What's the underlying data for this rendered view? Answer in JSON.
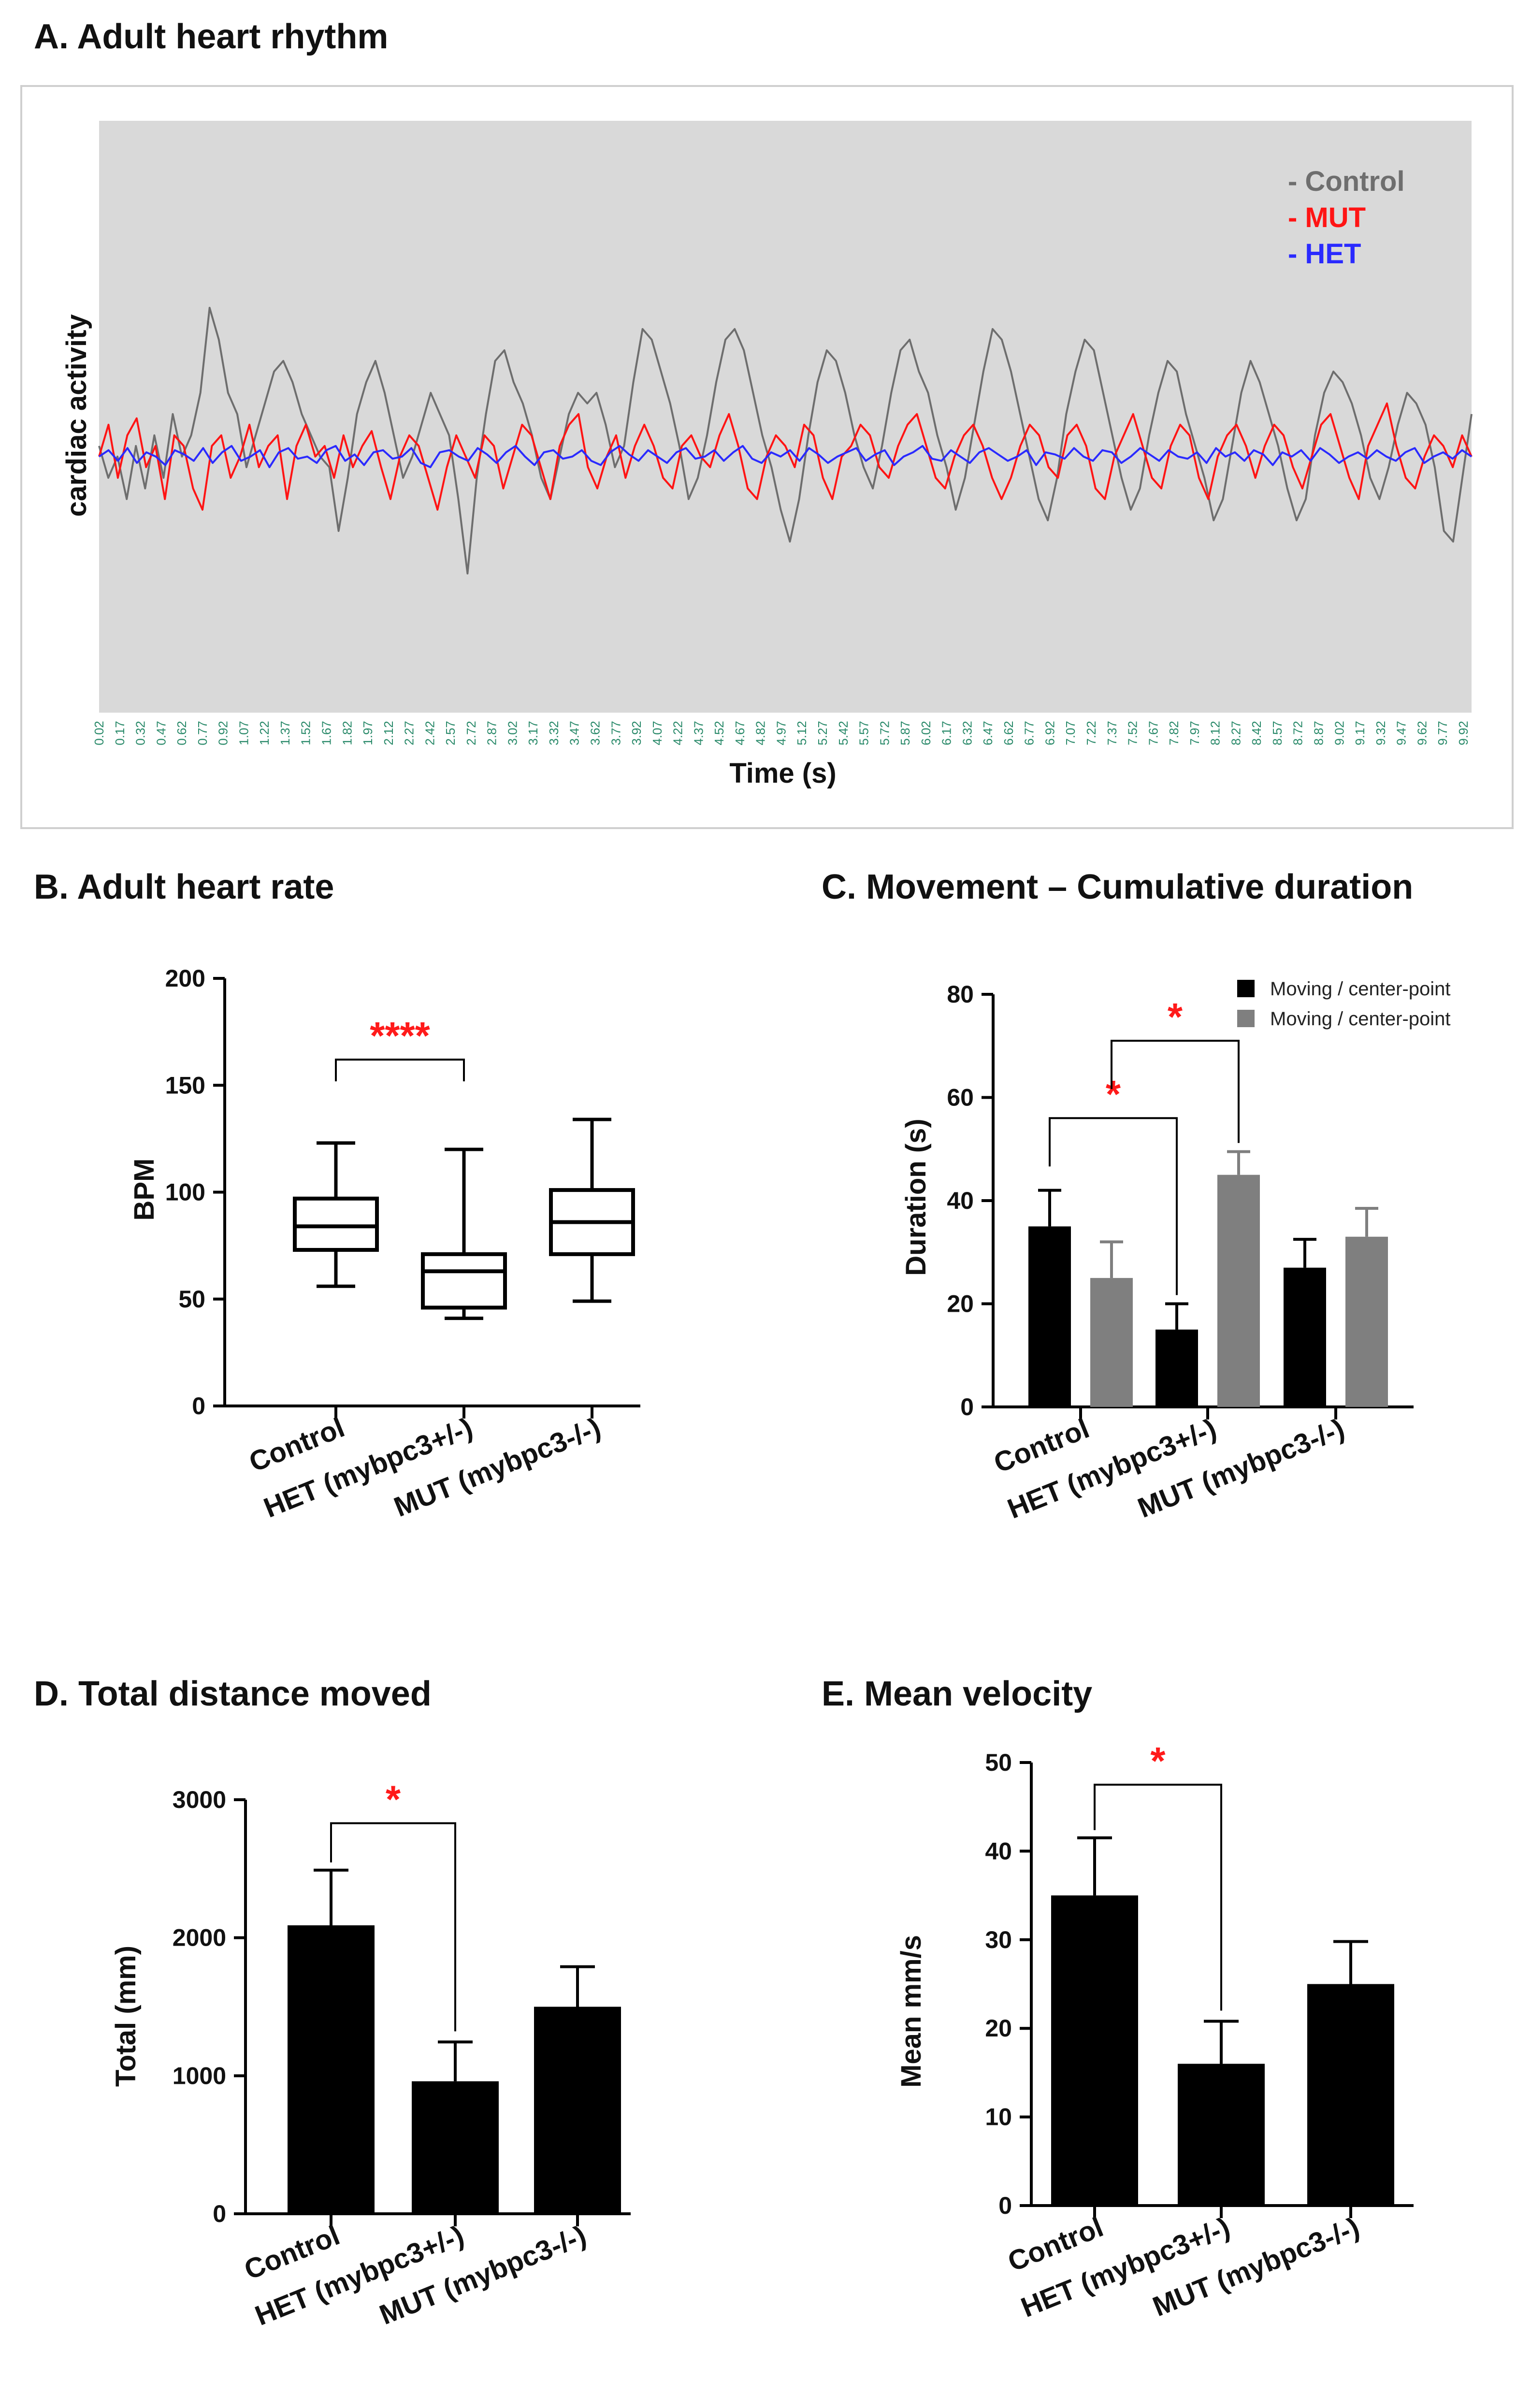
{
  "colors": {
    "control": "#6e6e6e",
    "mut": "#ff1414",
    "het": "#2a2aff",
    "bar_black": "#000000",
    "bar_gray": "#7f7f7f",
    "plot_bg": "#d9d9d9",
    "significance": "#ff1a1a",
    "time_tick": "#2a8a6a"
  },
  "chart_data": [
    {
      "id": "A",
      "type": "line",
      "title": "A. Adult heart rhythm",
      "xlabel": "Time (s)",
      "ylabel": "cardiac activity",
      "xlim": [
        0.02,
        9.98
      ],
      "ylim": [
        -1,
        1
      ],
      "x_tick_step": 0.15,
      "x_tick_start": 0.02,
      "legend": [
        "- Control",
        "- MUT",
        "- HET"
      ],
      "legend_position": "top-right",
      "series": [
        {
          "name": "Control",
          "key": "control",
          "y": [
            0.05,
            -0.1,
            0.0,
            -0.2,
            0.05,
            -0.15,
            0.1,
            -0.1,
            0.2,
            0.0,
            0.1,
            0.3,
            0.7,
            0.55,
            0.3,
            0.2,
            -0.05,
            0.1,
            0.25,
            0.4,
            0.45,
            0.35,
            0.2,
            0.1,
            0.0,
            -0.05,
            -0.35,
            -0.1,
            0.2,
            0.35,
            0.45,
            0.3,
            0.1,
            -0.1,
            0.0,
            0.15,
            0.3,
            0.2,
            0.1,
            -0.2,
            -0.55,
            -0.1,
            0.2,
            0.45,
            0.5,
            0.35,
            0.25,
            0.1,
            -0.1,
            -0.2,
            0.0,
            0.2,
            0.3,
            0.25,
            0.3,
            0.15,
            -0.05,
            0.05,
            0.35,
            0.6,
            0.55,
            0.4,
            0.25,
            0.05,
            -0.2,
            -0.1,
            0.1,
            0.35,
            0.55,
            0.6,
            0.5,
            0.3,
            0.1,
            -0.05,
            -0.25,
            -0.4,
            -0.2,
            0.1,
            0.35,
            0.5,
            0.45,
            0.3,
            0.1,
            -0.05,
            -0.15,
            0.05,
            0.3,
            0.5,
            0.55,
            0.4,
            0.3,
            0.1,
            -0.05,
            -0.25,
            -0.1,
            0.15,
            0.4,
            0.6,
            0.55,
            0.4,
            0.2,
            0.0,
            -0.2,
            -0.3,
            -0.1,
            0.2,
            0.4,
            0.55,
            0.5,
            0.3,
            0.1,
            -0.1,
            -0.25,
            -0.15,
            0.1,
            0.3,
            0.45,
            0.4,
            0.2,
            0.05,
            -0.1,
            -0.3,
            -0.2,
            0.05,
            0.3,
            0.45,
            0.35,
            0.2,
            0.05,
            -0.15,
            -0.3,
            -0.2,
            0.1,
            0.3,
            0.4,
            0.35,
            0.25,
            0.1,
            -0.1,
            -0.2,
            -0.05,
            0.15,
            0.3,
            0.25,
            0.15,
            -0.05,
            -0.35,
            -0.4,
            -0.1,
            0.2
          ]
        },
        {
          "name": "MUT",
          "key": "mut",
          "y": [
            0.0,
            0.15,
            -0.1,
            0.1,
            0.18,
            -0.05,
            0.05,
            -0.2,
            0.1,
            0.05,
            -0.15,
            -0.25,
            0.05,
            0.1,
            -0.1,
            0.0,
            0.15,
            -0.05,
            0.05,
            0.1,
            -0.2,
            0.05,
            0.15,
            0.0,
            0.05,
            -0.1,
            0.1,
            -0.05,
            0.05,
            0.12,
            -0.05,
            -0.2,
            0.0,
            0.1,
            0.05,
            -0.1,
            -0.25,
            -0.05,
            0.1,
            0.0,
            -0.1,
            0.1,
            0.05,
            -0.15,
            0.0,
            0.15,
            0.1,
            -0.05,
            -0.2,
            0.05,
            0.15,
            0.2,
            -0.05,
            -0.15,
            0.0,
            0.1,
            -0.1,
            0.05,
            0.15,
            0.05,
            -0.1,
            -0.15,
            0.05,
            0.1,
            0.0,
            -0.05,
            0.1,
            0.2,
            0.05,
            -0.15,
            -0.2,
            0.0,
            0.1,
            0.05,
            -0.05,
            0.15,
            0.1,
            -0.1,
            -0.2,
            0.0,
            0.05,
            0.15,
            0.1,
            -0.05,
            -0.1,
            0.05,
            0.15,
            0.2,
            0.05,
            -0.1,
            -0.15,
            0.0,
            0.1,
            0.15,
            0.05,
            -0.1,
            -0.2,
            -0.1,
            0.05,
            0.15,
            0.1,
            -0.05,
            -0.1,
            0.1,
            0.15,
            0.05,
            -0.15,
            -0.2,
            0.0,
            0.1,
            0.2,
            0.05,
            -0.1,
            -0.15,
            0.05,
            0.15,
            0.1,
            -0.1,
            -0.2,
            0.0,
            0.1,
            0.15,
            0.05,
            -0.1,
            0.05,
            0.15,
            0.1,
            -0.05,
            -0.15,
            0.0,
            0.15,
            0.2,
            0.05,
            -0.1,
            -0.2,
            0.05,
            0.15,
            0.25,
            0.05,
            -0.1,
            -0.15,
            0.0,
            0.1,
            0.05,
            -0.05,
            0.1,
            0.0
          ]
        },
        {
          "name": "HET",
          "key": "het",
          "y": [
            0.0,
            0.03,
            -0.02,
            0.04,
            -0.03,
            0.02,
            0.0,
            -0.04,
            0.03,
            0.01,
            -0.02,
            0.04,
            -0.03,
            0.02,
            0.05,
            -0.02,
            0.0,
            0.03,
            -0.05,
            0.02,
            0.04,
            -0.01,
            0.0,
            -0.03,
            0.03,
            0.05,
            -0.02,
            0.01,
            -0.04,
            0.02,
            0.03,
            -0.01,
            0.0,
            0.04,
            -0.03,
            -0.05,
            0.02,
            0.03,
            0.0,
            -0.02,
            0.04,
            0.01,
            -0.03,
            0.02,
            0.05,
            0.0,
            -0.04,
            0.02,
            0.03,
            -0.01,
            0.0,
            0.03,
            -0.02,
            -0.04,
            0.02,
            0.05,
            0.01,
            -0.02,
            0.03,
            0.0,
            -0.03,
            0.02,
            0.04,
            -0.01,
            0.0,
            0.03,
            -0.02,
            0.02,
            0.05,
            -0.01,
            -0.03,
            0.02,
            0.0,
            0.03,
            -0.02,
            0.04,
            0.01,
            -0.03,
            0.0,
            0.02,
            0.04,
            -0.02,
            0.01,
            0.03,
            -0.04,
            0.0,
            0.02,
            0.05,
            -0.01,
            -0.02,
            0.03,
            0.0,
            -0.03,
            0.02,
            0.04,
            0.01,
            -0.02,
            0.0,
            0.03,
            -0.04,
            0.02,
            0.01,
            -0.01,
            0.04,
            0.0,
            -0.02,
            0.03,
            0.02,
            -0.03,
            0.0,
            0.04,
            0.01,
            -0.02,
            0.03,
            0.0,
            -0.01,
            0.02,
            -0.03,
            0.04,
            0.0,
            0.02,
            -0.02,
            0.03,
            0.01,
            -0.04,
            0.02,
            0.0,
            0.03,
            -0.02,
            0.04,
            0.01,
            -0.03,
            0.0,
            0.02,
            -0.01,
            0.03,
            0.0,
            -0.02,
            0.02,
            0.04,
            -0.03,
            0.0,
            0.02,
            -0.01,
            0.03,
            0.0
          ]
        }
      ]
    },
    {
      "id": "B",
      "type": "boxplot",
      "title": "B. Adult heart rate",
      "ylabel": "BPM",
      "ylim": [
        0,
        200
      ],
      "yticks": [
        0,
        50,
        100,
        150,
        200
      ],
      "categories": [
        "Control",
        "HET (mybpc3+/-)",
        "MUT (mybpc3-/-)"
      ],
      "boxes": [
        {
          "min": 56,
          "q1": 73,
          "median": 84,
          "q3": 97,
          "max": 123
        },
        {
          "min": 41,
          "q1": 46,
          "median": 63,
          "q3": 71,
          "max": 120
        },
        {
          "min": 49,
          "q1": 71,
          "median": 86,
          "q3": 101,
          "max": 134
        }
      ],
      "significance": [
        {
          "from": 0,
          "to": 1,
          "label": "****",
          "y": 162
        }
      ]
    },
    {
      "id": "C",
      "type": "bar",
      "title": "C. Movement – Cumulative duration",
      "ylabel": "Duration (s)",
      "ylim": [
        0,
        80
      ],
      "yticks": [
        0,
        20,
        40,
        60,
        80
      ],
      "categories": [
        "Control",
        "HET (mybpc3+/-)",
        "MUT (mybpc3-/-)"
      ],
      "legend_position": "top-right",
      "series": [
        {
          "name": "Moving / center-point",
          "color_key": "bar_black",
          "values": [
            35,
            15,
            27
          ],
          "errors": [
            7,
            5,
            5.5
          ]
        },
        {
          "name": "Moving / center-point",
          "color_key": "bar_gray",
          "values": [
            25,
            45,
            33
          ],
          "errors": [
            7,
            4.5,
            5.5
          ]
        }
      ],
      "significance": [
        {
          "from_bar": 0,
          "to_bar": 2,
          "label": "*",
          "y": 56
        },
        {
          "from_bar": 1,
          "to_bar": 3,
          "label": "*",
          "y": 71
        }
      ]
    },
    {
      "id": "D",
      "type": "bar",
      "title": "D. Total distance moved",
      "ylabel": "Total (mm)",
      "ylim": [
        0,
        3000
      ],
      "yticks": [
        0,
        1000,
        2000,
        3000
      ],
      "categories": [
        "Control",
        "HET (mybpc3+/-)",
        "MUT (mybpc3-/-)"
      ],
      "values": [
        2090,
        960,
        1500
      ],
      "errors": [
        400,
        285,
        290
      ],
      "significance": [
        {
          "from": 0,
          "to": 1,
          "label": "*",
          "y": 2830
        }
      ]
    },
    {
      "id": "E",
      "type": "bar",
      "title": "E. Mean velocity",
      "ylabel": "Mean mm/s",
      "ylim": [
        0,
        50
      ],
      "yticks": [
        0,
        10,
        20,
        30,
        40,
        50
      ],
      "categories": [
        "Control",
        "HET (mybpc3+/-)",
        "MUT (mybpc3-/-)"
      ],
      "values": [
        35,
        16,
        25
      ],
      "errors": [
        6.5,
        4.8,
        4.8
      ],
      "significance": [
        {
          "from": 0,
          "to": 1,
          "label": "*",
          "y": 47.5
        }
      ]
    }
  ]
}
